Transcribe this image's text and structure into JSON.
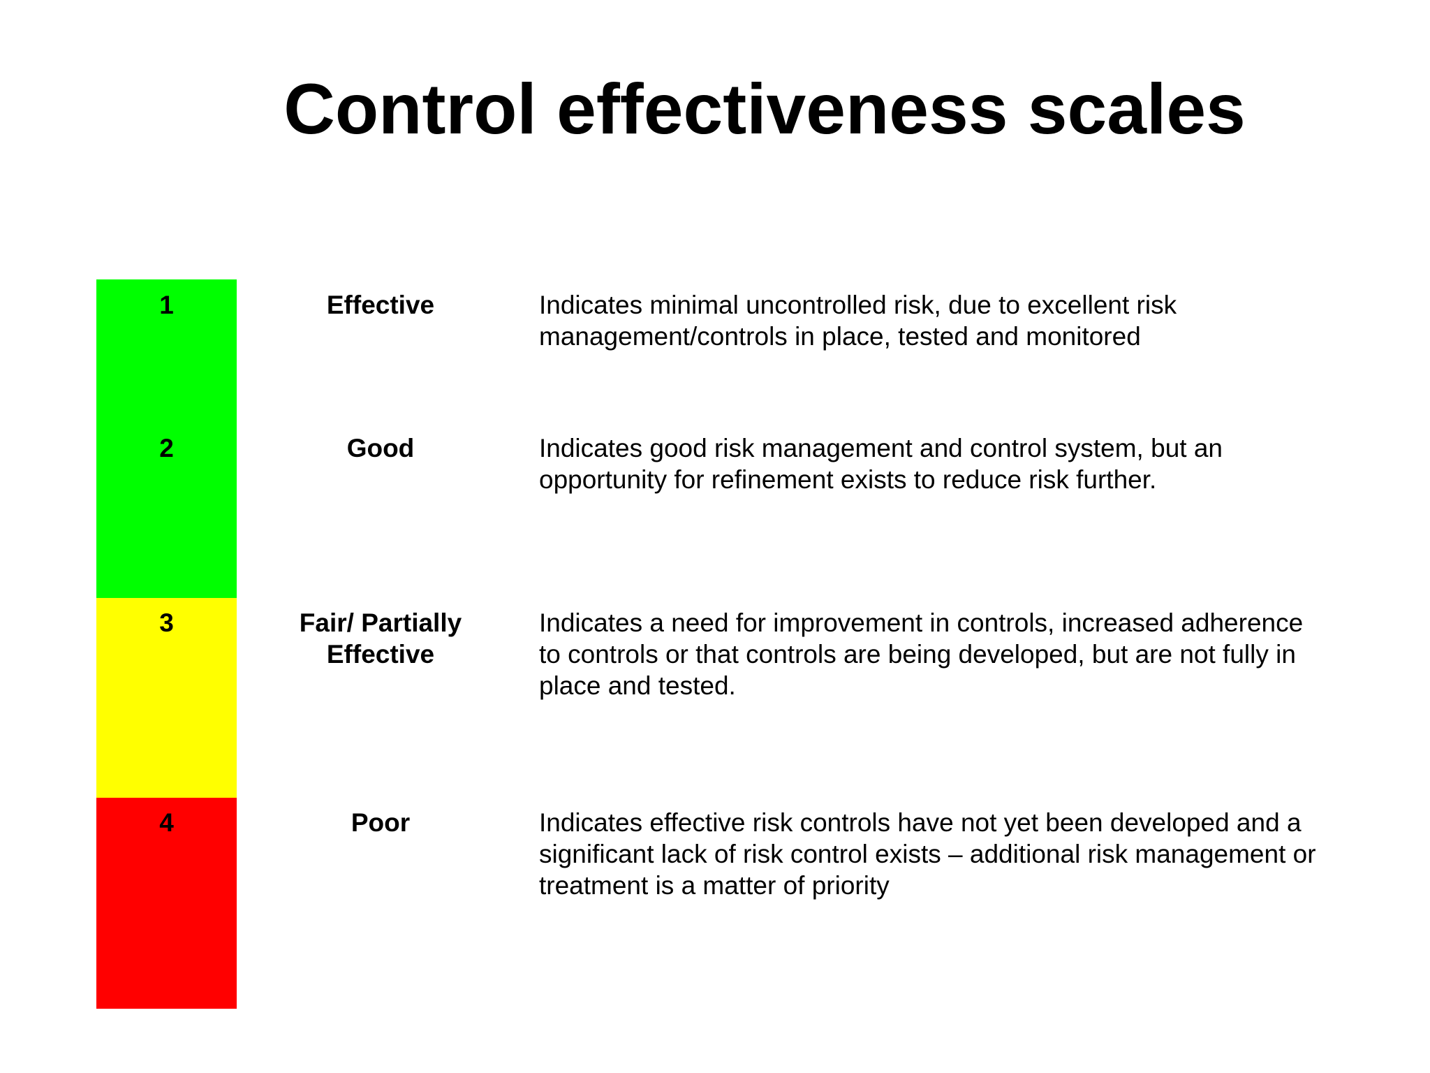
{
  "title": "Control effectiveness scales",
  "colors": {
    "green": "#00ff00",
    "yellow": "#ffff00",
    "red": "#ff0000"
  },
  "rows": [
    {
      "number": "1",
      "rating": "Effective",
      "description_lines": [
        "Indicates minimal uncontrolled risk, due to excellent risk",
        "management/controls in place, tested and monitored"
      ]
    },
    {
      "number": "2",
      "rating": "Good",
      "description_lines": [
        "Indicates good risk management and control system, but an",
        "opportunity for refinement exists to reduce risk further."
      ]
    },
    {
      "number": "3",
      "rating_lines": [
        "Fair/ Partially",
        "Effective"
      ],
      "description_lines": [
        "Indicates a need for improvement in controls, increased adherence",
        "to controls or that controls are  being developed, but are not fully in",
        "place and tested."
      ]
    },
    {
      "number": "4",
      "rating": "Poor",
      "description_lines": [
        "Indicates effective risk controls have not yet been developed and a",
        "significant lack of risk control exists – additional risk management or",
        "treatment is a matter of priority"
      ]
    }
  ]
}
